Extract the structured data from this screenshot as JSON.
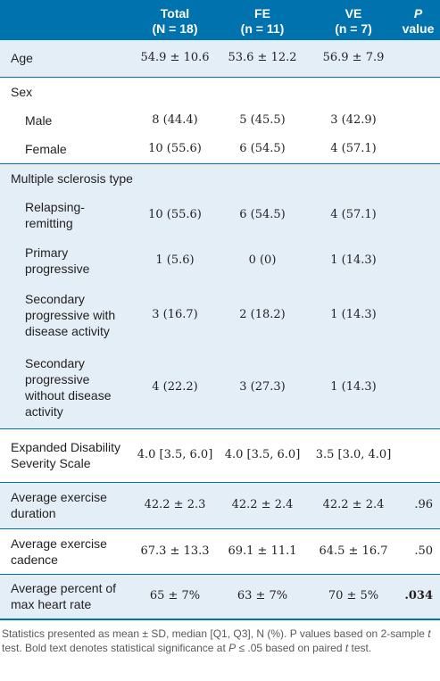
{
  "header": {
    "col0": "",
    "total_l1": "Total",
    "total_l2": "(N = 18)",
    "fe_l1": "FE",
    "fe_l2": "(n = 11)",
    "ve_l1": "VE",
    "ve_l2": "(n = 7)",
    "p_l1": "P",
    "p_l2": "value"
  },
  "rows": {
    "age": {
      "label": "Age",
      "total": "54.9 ± 10.6",
      "fe": "53.6 ± 12.2",
      "ve": "56.9 ± 7.9",
      "p": ""
    },
    "sex": {
      "label": "Sex"
    },
    "male": {
      "label": "Male",
      "total": "8 (44.4)",
      "fe": "5 (45.5)",
      "ve": "3 (42.9)",
      "p": ""
    },
    "female": {
      "label": "Female",
      "total": "10 (55.6)",
      "fe": "6 (54.5)",
      "ve": "4 (57.1)",
      "p": ""
    },
    "ms_type": {
      "label": "Multiple sclerosis type"
    },
    "rr": {
      "label_l1": "Relapsing-",
      "label_l2": "remitting",
      "total": "10 (55.6)",
      "fe": "6 (54.5)",
      "ve": "4 (57.1)",
      "p": ""
    },
    "pp": {
      "label_l1": "Primary",
      "label_l2": "progressive",
      "total": "1 (5.6)",
      "fe": "0 (0)",
      "ve": "1 (14.3)",
      "p": ""
    },
    "spa": {
      "label_l1": "Secondary",
      "label_l2": "progressive with",
      "label_l3": "disease activity",
      "total": "3 (16.7)",
      "fe": "2 (18.2)",
      "ve": "1 (14.3)",
      "p": ""
    },
    "spwa": {
      "label_l1": "Secondary",
      "label_l2": "progressive",
      "label_l3": "without disease",
      "label_l4": "activity",
      "total": "4 (22.2)",
      "fe": "3 (27.3)",
      "ve": "1 (14.3)",
      "p": ""
    },
    "edss": {
      "label_l1": "Expanded Disability",
      "label_l2": "Severity Scale",
      "total": "4.0 [3.5, 6.0]",
      "fe": "4.0 [3.5, 6.0]",
      "ve": "3.5 [3.0, 4.0]",
      "p": ""
    },
    "duration": {
      "label_l1": "Average exercise",
      "label_l2": "duration",
      "total": "42.2 ± 2.3",
      "fe": "42.2 ± 2.4",
      "ve": "42.2 ± 2.4",
      "p": ".96"
    },
    "cadence": {
      "label_l1": "Average exercise",
      "label_l2": "cadence",
      "total": "67.3 ± 13.3",
      "fe": "69.1 ± 11.1",
      "ve": "64.5 ± 16.7",
      "p": ".50"
    },
    "hr": {
      "label_l1": "Average percent of",
      "label_l2": "max heart rate",
      "total": "65 ± 7%",
      "fe": "63 ± 7%",
      "ve": "70 ± 5%",
      "p": ".034"
    }
  },
  "footnote": {
    "part1": "Statistics presented as mean ± SD, median [Q1, Q3], N (%). P values based on 2-sample ",
    "t1": "t",
    "part2": " test. Bold text denotes statistical significance at ",
    "p": "P",
    "part3": " ≤ .05 based on paired ",
    "t2": "t",
    "part4": " test."
  }
}
